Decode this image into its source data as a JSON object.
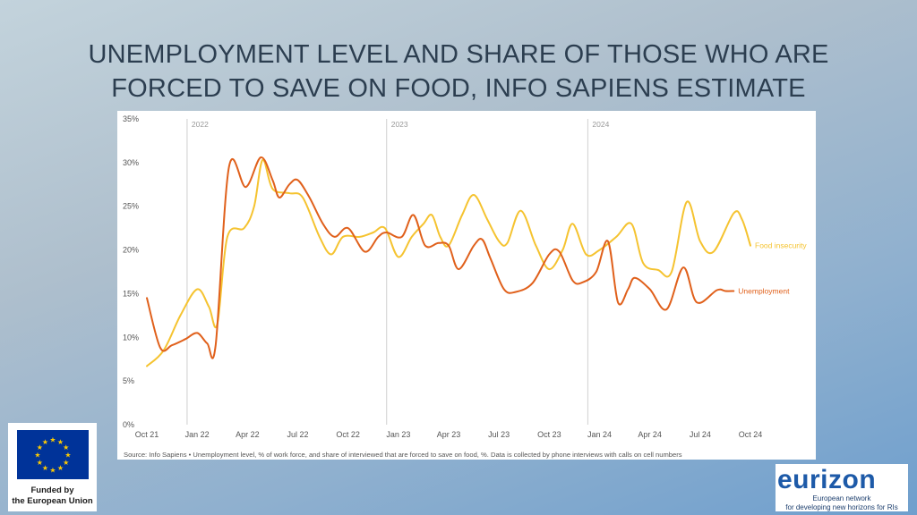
{
  "title_line1": "UNEMPLOYMENT LEVEL AND SHARE OF THOSE WHO ARE",
  "title_line2": "FORCED TO SAVE ON FOOD, INFO SAPIENS ESTIMATE",
  "source": "Source: Info Sapiens • Unemployment level, % of work force, and share of interviewed that are forced to save on food, %. Data is collected by phone interviews with calls on cell numbers",
  "eu_logo": {
    "line1": "Funded by",
    "line2": "the European Union"
  },
  "eurizon_logo": {
    "name_a": "eurizon",
    "line1": "European network",
    "line2": "for developing new horizons for RIs"
  },
  "chart_data": {
    "type": "line",
    "title": "UNEMPLOYMENT LEVEL AND SHARE OF THOSE WHO ARE FORCED TO SAVE ON FOOD, INFO SAPIENS ESTIMATE",
    "x_unit": "months since Oct 21",
    "x_tick_labels": [
      "Oct 21",
      "Jan 22",
      "Apr 22",
      "Jul 22",
      "Oct 22",
      "Jan 23",
      "Apr 23",
      "Jul 23",
      "Oct 23",
      "Jan 24",
      "Apr 24",
      "Jul 24",
      "Oct 24"
    ],
    "x_tick_positions": [
      0,
      3,
      6,
      9,
      12,
      15,
      18,
      21,
      24,
      27,
      30,
      33,
      36
    ],
    "year_markers": [
      {
        "label": "2022",
        "x": 2.4
      },
      {
        "label": "2023",
        "x": 14.3
      },
      {
        "label": "2024",
        "x": 26.3
      }
    ],
    "y_tick_labels": [
      "0%",
      "5%",
      "10%",
      "15%",
      "20%",
      "25%",
      "30%",
      "35%"
    ],
    "ylim": [
      0,
      35
    ],
    "xlim": [
      0,
      36
    ],
    "grid": false,
    "series": [
      {
        "name": "Food insecurity",
        "color": "#f5c330",
        "points": [
          [
            0,
            6.7
          ],
          [
            1,
            8.5
          ],
          [
            2,
            12.5
          ],
          [
            3,
            15.5
          ],
          [
            3.7,
            13.5
          ],
          [
            4.2,
            11.5
          ],
          [
            4.8,
            21.5
          ],
          [
            5.8,
            22.5
          ],
          [
            6.4,
            25
          ],
          [
            6.9,
            30.3
          ],
          [
            7.5,
            27
          ],
          [
            8.5,
            26.5
          ],
          [
            9.3,
            26
          ],
          [
            10.3,
            21.5
          ],
          [
            11,
            19.5
          ],
          [
            11.7,
            21.5
          ],
          [
            12.7,
            21.5
          ],
          [
            13.5,
            22
          ],
          [
            14.2,
            22.5
          ],
          [
            15,
            19.2
          ],
          [
            15.8,
            21.5
          ],
          [
            16.5,
            23
          ],
          [
            17,
            24
          ],
          [
            17.5,
            21.5
          ],
          [
            18,
            20.5
          ],
          [
            18.8,
            24
          ],
          [
            19.5,
            26.3
          ],
          [
            20.3,
            23.5
          ],
          [
            21,
            21
          ],
          [
            21.5,
            20.8
          ],
          [
            22.3,
            24.5
          ],
          [
            23.2,
            20.5
          ],
          [
            24,
            17.8
          ],
          [
            24.8,
            20
          ],
          [
            25.4,
            23
          ],
          [
            26.2,
            19.5
          ],
          [
            27,
            20
          ],
          [
            28,
            21.5
          ],
          [
            28.9,
            23
          ],
          [
            29.6,
            18.5
          ],
          [
            30.5,
            17.7
          ],
          [
            31.3,
            17.5
          ],
          [
            32.2,
            25.5
          ],
          [
            33,
            21
          ],
          [
            33.8,
            19.8
          ],
          [
            35,
            24.2
          ],
          [
            35.5,
            23.5
          ],
          [
            36,
            20.5
          ]
        ],
        "end_label": "Food insecurity"
      },
      {
        "name": "Unemployment",
        "color": "#e0601b",
        "points": [
          [
            0,
            14.5
          ],
          [
            0.8,
            8.8
          ],
          [
            1.5,
            9.1
          ],
          [
            2.3,
            9.8
          ],
          [
            3.0,
            10.5
          ],
          [
            3.6,
            9.3
          ],
          [
            4.1,
            9.1
          ],
          [
            4.9,
            29.5
          ],
          [
            5.9,
            27.2
          ],
          [
            6.8,
            30.6
          ],
          [
            7.5,
            28
          ],
          [
            7.9,
            26
          ],
          [
            8.5,
            27.5
          ],
          [
            9.0,
            28
          ],
          [
            9.7,
            26
          ],
          [
            10.5,
            23
          ],
          [
            11.2,
            21.5
          ],
          [
            12,
            22.5
          ],
          [
            13.0,
            19.8
          ],
          [
            13.8,
            21.5
          ],
          [
            14.3,
            22
          ],
          [
            15.2,
            21.5
          ],
          [
            15.9,
            24
          ],
          [
            16.6,
            20.5
          ],
          [
            17.4,
            20.8
          ],
          [
            18,
            20.5
          ],
          [
            18.6,
            17.8
          ],
          [
            19.5,
            20.5
          ],
          [
            20,
            21.2
          ],
          [
            20.5,
            19
          ],
          [
            21.3,
            15.5
          ],
          [
            22,
            15.2
          ],
          [
            23,
            16.2
          ],
          [
            24,
            19.5
          ],
          [
            24.6,
            19.8
          ],
          [
            25.4,
            16.5
          ],
          [
            26,
            16.3
          ],
          [
            26.8,
            17.5
          ],
          [
            27.5,
            21
          ],
          [
            28.1,
            14
          ],
          [
            28.7,
            15.5
          ],
          [
            29.1,
            16.8
          ],
          [
            30,
            15.5
          ],
          [
            31,
            13.2
          ],
          [
            32,
            18
          ],
          [
            32.8,
            14
          ],
          [
            34,
            15.4
          ],
          [
            34.5,
            15.3
          ],
          [
            35,
            15.3
          ]
        ],
        "end_label": "Unemployment"
      }
    ]
  }
}
